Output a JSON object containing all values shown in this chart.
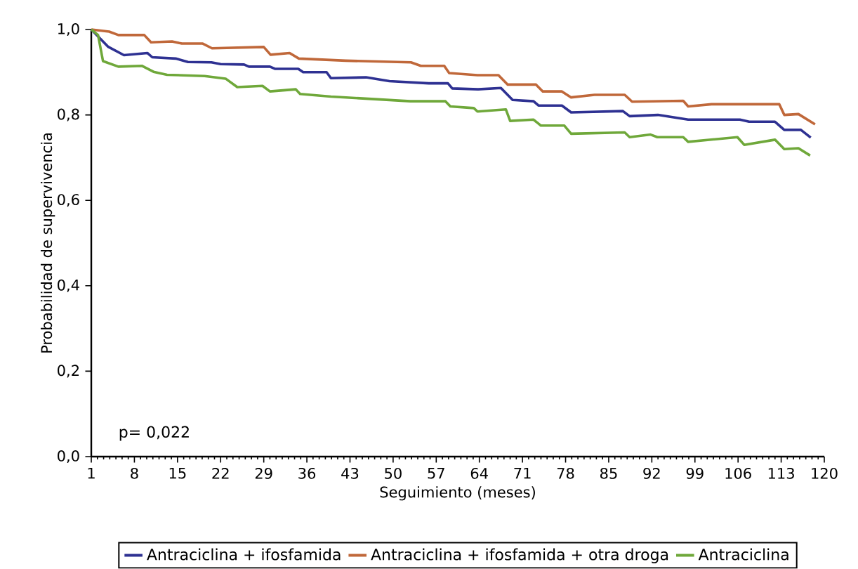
{
  "chart_data": {
    "type": "line",
    "xlabel": "Seguimiento (meses)",
    "ylabel": "Probabilidad de supervivencia",
    "annotations": [
      "p= 0,022"
    ],
    "xlim": [
      1,
      120
    ],
    "xticks": [
      1,
      8,
      15,
      22,
      29,
      36,
      43,
      50,
      57,
      64,
      71,
      78,
      85,
      92,
      99,
      106,
      113,
      120
    ],
    "ylim": [
      0,
      1
    ],
    "yticks": [
      {
        "value": 0,
        "label": "0,0"
      },
      {
        "value": 0.2,
        "label": "0,2"
      },
      {
        "value": 0.4,
        "label": "0,4"
      },
      {
        "value": 0.6,
        "label": "0,6"
      },
      {
        "value": 0.8,
        "label": "0,8"
      },
      {
        "value": 1,
        "label": "1,0"
      }
    ],
    "grid": false,
    "legend": "bottom",
    "line_style": "solid",
    "series": [
      {
        "name": "Antraciclina + ifosfamida",
        "color": "#2e3192",
        "x": [
          1,
          3.7,
          6.3,
          10.1,
          10.9,
          14.7,
          16.7,
          20.5,
          22,
          25.8,
          26.6,
          30,
          30.8,
          34.6,
          35.4,
          39.2,
          39.9,
          45.6,
          49.4,
          55.8,
          58.9,
          59.6,
          63.8,
          67.5,
          69.4,
          72.8,
          73.6,
          77.4,
          78.9,
          87.3,
          88.4,
          93,
          97.9,
          106.3,
          107.8,
          112,
          113.5,
          116.2,
          117.8
        ],
        "values": [
          1,
          0.96,
          0.94,
          0.945,
          0.935,
          0.932,
          0.924,
          0.923,
          0.919,
          0.918,
          0.913,
          0.913,
          0.908,
          0.908,
          0.9,
          0.9,
          0.886,
          0.888,
          0.879,
          0.874,
          0.874,
          0.862,
          0.86,
          0.863,
          0.835,
          0.832,
          0.822,
          0.822,
          0.806,
          0.809,
          0.797,
          0.8,
          0.789,
          0.789,
          0.784,
          0.784,
          0.765,
          0.765,
          0.747
        ]
      },
      {
        "name": "Antraciclina + ifosfamida + otra droga",
        "color": "#c0683a",
        "x": [
          1,
          3.9,
          5.4,
          9.6,
          10.7,
          14.1,
          15.7,
          19.1,
          20.6,
          29,
          30.1,
          33.2,
          34.7,
          42.3,
          52.9,
          54.5,
          58.3,
          59.1,
          63.7,
          67.1,
          68.6,
          73.2,
          74.3,
          77.4,
          78.9,
          82.7,
          87.6,
          88.8,
          97.1,
          97.9,
          101.7,
          112.7,
          113.5,
          115.8,
          118.5
        ],
        "values": [
          1,
          0.995,
          0.987,
          0.987,
          0.97,
          0.972,
          0.967,
          0.967,
          0.956,
          0.959,
          0.941,
          0.945,
          0.932,
          0.927,
          0.923,
          0.915,
          0.915,
          0.898,
          0.893,
          0.893,
          0.871,
          0.871,
          0.855,
          0.855,
          0.841,
          0.847,
          0.847,
          0.831,
          0.833,
          0.82,
          0.825,
          0.825,
          0.8,
          0.802,
          0.778
        ]
      },
      {
        "name": "Antraciclina",
        "color": "#6fa83a",
        "x": [
          1,
          2.1,
          2.9,
          5.4,
          9.2,
          11.1,
          13.3,
          19.4,
          22.8,
          24.7,
          28.8,
          30,
          34.2,
          34.9,
          39.9,
          52.8,
          58.5,
          59.3,
          63.1,
          63.7,
          68.3,
          69,
          72.8,
          74,
          77.8,
          78.9,
          87.6,
          88.4,
          91.8,
          92.9,
          97.1,
          97.9,
          105.9,
          107,
          112,
          113.5,
          115.8,
          117.7
        ],
        "values": [
          1,
          0.987,
          0.926,
          0.913,
          0.915,
          0.901,
          0.894,
          0.891,
          0.885,
          0.865,
          0.868,
          0.855,
          0.86,
          0.849,
          0.843,
          0.832,
          0.832,
          0.82,
          0.816,
          0.808,
          0.813,
          0.786,
          0.789,
          0.775,
          0.775,
          0.756,
          0.759,
          0.748,
          0.754,
          0.748,
          0.748,
          0.737,
          0.748,
          0.73,
          0.742,
          0.72,
          0.722,
          0.705
        ]
      }
    ]
  }
}
